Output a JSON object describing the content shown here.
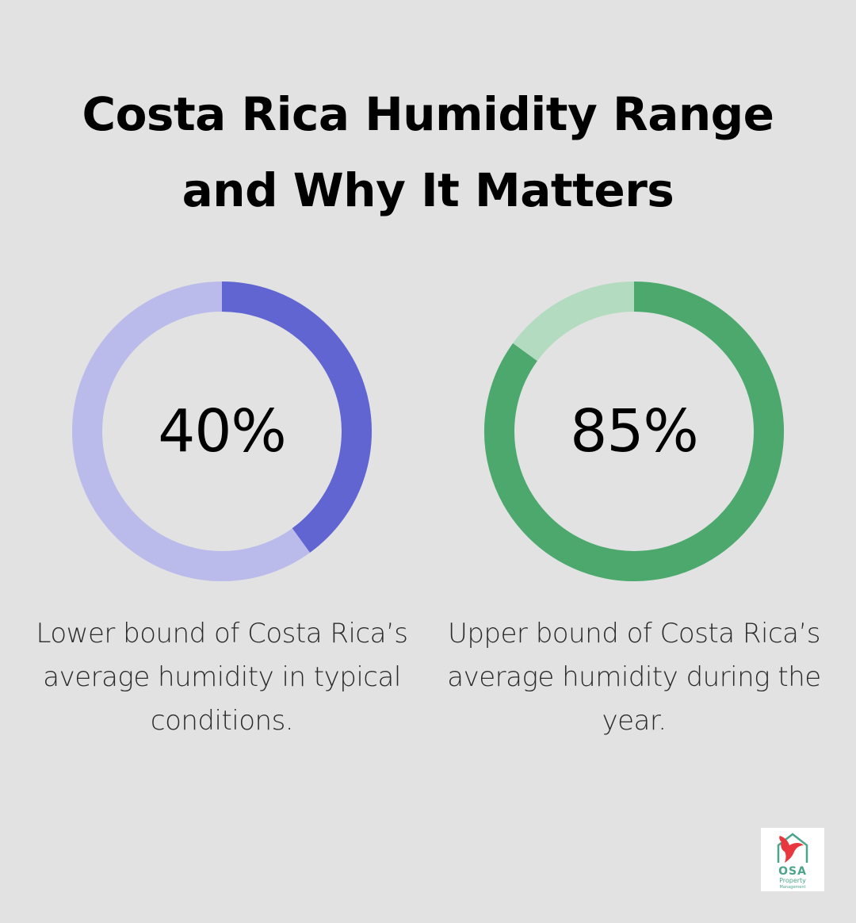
{
  "title": {
    "line1": "Costa Rica Humidity Range",
    "line2": "and Why It Matters"
  },
  "chart_data": [
    {
      "type": "pie",
      "variant": "donut",
      "value": 40,
      "max": 100,
      "label": "40%",
      "description": "Lower bound of Costa Rica’s average humidity in typical conditions.",
      "colors": {
        "filled": "#6165d1",
        "track": "#babbea"
      }
    },
    {
      "type": "pie",
      "variant": "donut",
      "value": 85,
      "max": 100,
      "label": "85%",
      "description": "Upper bound of Costa Rica’s average humidity during the year.",
      "colors": {
        "filled": "#4ca86c",
        "track": "#b3dbbf"
      }
    }
  ],
  "logo": {
    "icon": "parrot-house-icon",
    "text": "OSA",
    "subtext": "Property",
    "subtext2": "Management",
    "colors": {
      "bird": "#e8383d",
      "house": "#4aa58a"
    }
  }
}
